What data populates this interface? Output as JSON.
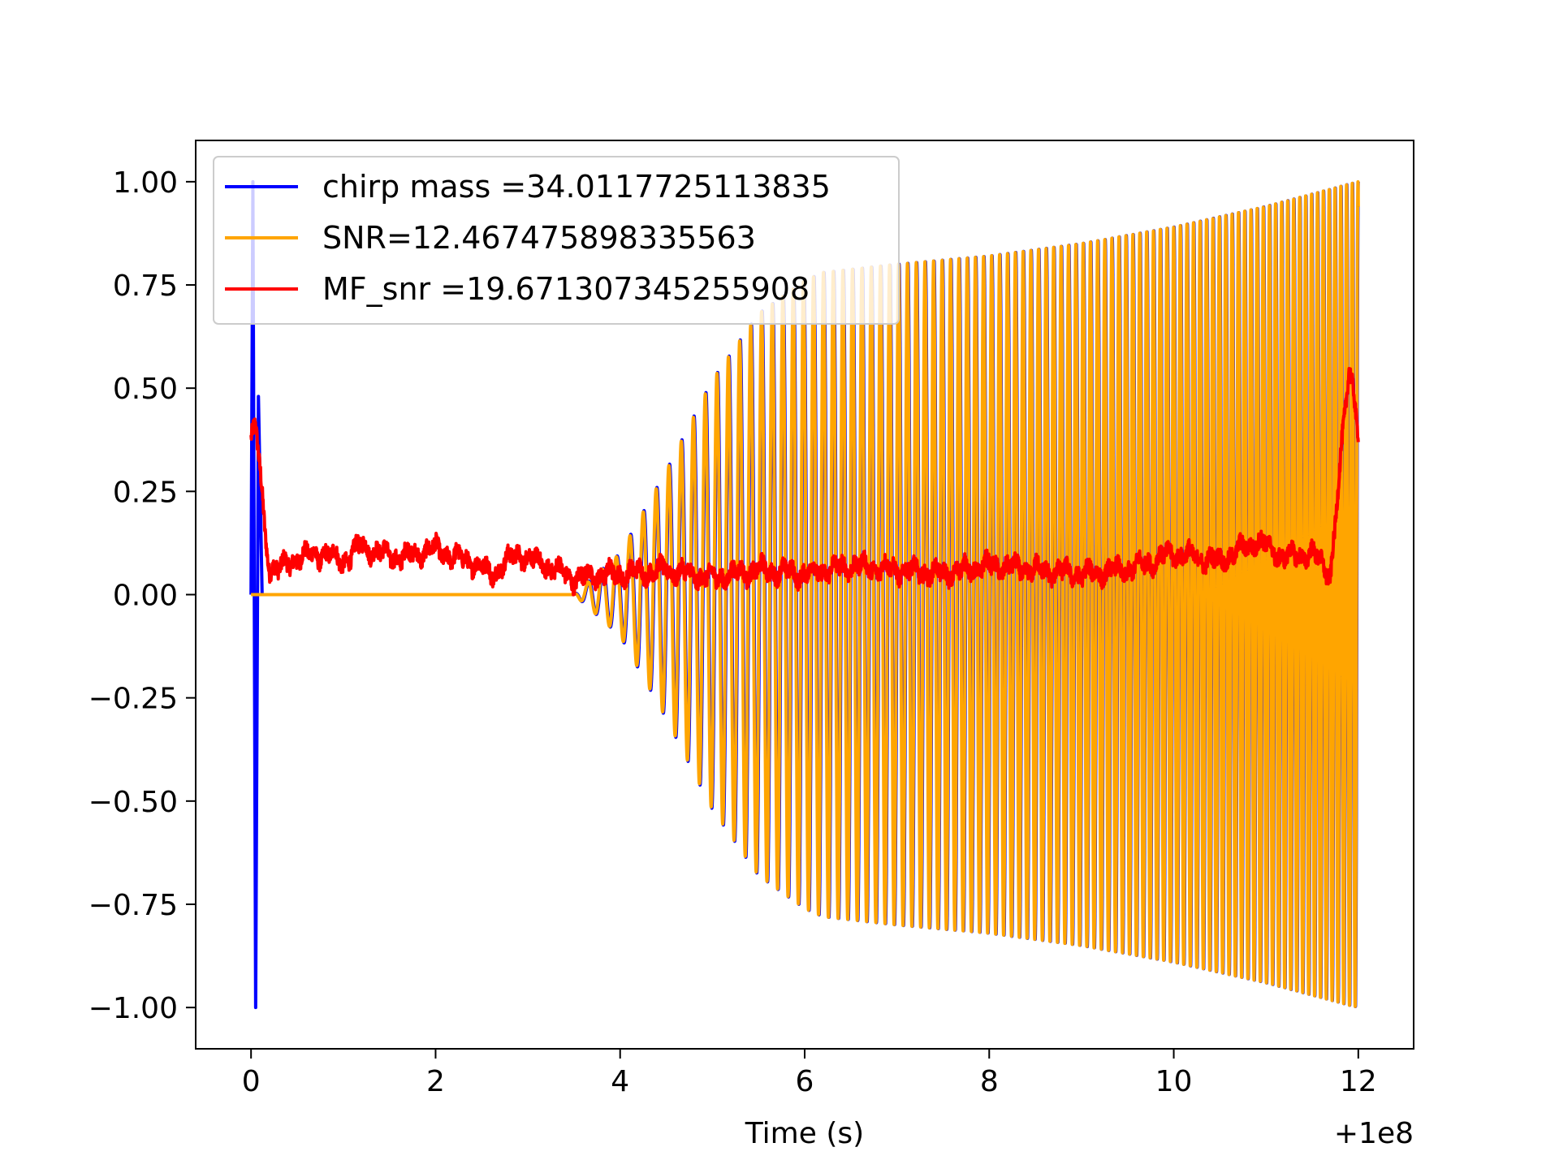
{
  "chart_data": {
    "type": "line",
    "title": "",
    "xlabel": "Time (s)",
    "ylabel": "",
    "x_offset_label": "+1e8",
    "xlim": [
      -0.6,
      12.6
    ],
    "ylim": [
      -1.1,
      1.1
    ],
    "x_ticks": [
      0,
      2,
      4,
      6,
      8,
      10,
      12
    ],
    "x_tick_labels": [
      "0",
      "2",
      "4",
      "6",
      "8",
      "10",
      "12"
    ],
    "y_ticks": [
      1.0,
      0.75,
      0.5,
      0.25,
      0.0,
      -0.25,
      -0.5,
      -0.75,
      -1.0
    ],
    "y_tick_labels": [
      "1.00",
      "0.75",
      "0.50",
      "0.25",
      "0.00",
      "−0.25",
      "−0.50",
      "−0.75",
      "−1.00"
    ],
    "grid": false,
    "legend_position": "top-left",
    "series": [
      {
        "name": "chirp mass =34.0117725113835",
        "color": "#0000ff",
        "kind": "oscillation",
        "spike": {
          "x": [
            0.0,
            0.02,
            0.05,
            0.08,
            0.12
          ],
          "y": [
            0.0,
            1.0,
            -1.0,
            0.48,
            0.0
          ]
        },
        "envelope": {
          "x": [
            0,
            3.5,
            4.0,
            4.5,
            5.0,
            5.5,
            6.0,
            6.2,
            7.0,
            8.0,
            9.0,
            10.0,
            11.0,
            11.5,
            12.0
          ],
          "y": [
            0.0,
            0.0,
            0.1,
            0.3,
            0.52,
            0.68,
            0.76,
            0.78,
            0.8,
            0.82,
            0.85,
            0.89,
            0.94,
            0.97,
            1.0
          ]
        },
        "start_x": 3.5,
        "end_x": 12.0,
        "n_cycles": 95
      },
      {
        "name": "SNR=12.467475898335563",
        "color": "#ffa500",
        "kind": "oscillation",
        "envelope": {
          "x": [
            0,
            3.5,
            4.0,
            4.5,
            5.0,
            5.5,
            6.0,
            6.2,
            7.0,
            8.0,
            9.0,
            10.0,
            11.0,
            11.5,
            12.0
          ],
          "y": [
            0.0,
            0.0,
            0.1,
            0.3,
            0.52,
            0.68,
            0.76,
            0.78,
            0.8,
            0.82,
            0.85,
            0.89,
            0.94,
            0.97,
            1.0
          ]
        },
        "start_x": 0.0,
        "osc_start_x": 3.5,
        "end_x": 12.0,
        "n_cycles": 95,
        "phase_shift": 0.35
      },
      {
        "name": "MF_snr =19.671307345255908",
        "color": "#ff0000",
        "kind": "noisy",
        "x": [
          0.0,
          0.05,
          0.1,
          0.15,
          0.2,
          0.3,
          0.5,
          0.8,
          1.0,
          1.2,
          1.4,
          1.6,
          2.0,
          2.2,
          2.4,
          2.6,
          2.9,
          3.2,
          3.5,
          4.0,
          4.5,
          5.0,
          5.5,
          6.0,
          6.5,
          7.0,
          7.5,
          8.0,
          8.5,
          9.0,
          9.5,
          10.0,
          10.5,
          10.9,
          11.2,
          11.5,
          11.7,
          11.8,
          11.9,
          11.95,
          12.0
        ],
        "y": [
          0.38,
          0.4,
          0.3,
          0.15,
          0.07,
          0.06,
          0.09,
          0.1,
          0.08,
          0.12,
          0.1,
          0.09,
          0.11,
          0.09,
          0.08,
          0.05,
          0.1,
          0.07,
          0.04,
          0.05,
          0.06,
          0.04,
          0.06,
          0.05,
          0.07,
          0.06,
          0.05,
          0.07,
          0.06,
          0.05,
          0.06,
          0.1,
          0.08,
          0.13,
          0.09,
          0.1,
          0.05,
          0.3,
          0.55,
          0.5,
          0.4
        ],
        "noise_amplitude": 0.02
      }
    ]
  }
}
